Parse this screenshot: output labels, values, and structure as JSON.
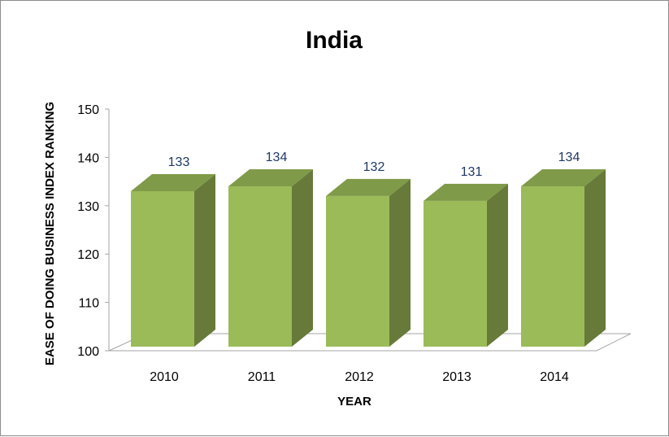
{
  "chart_data": {
    "type": "bar",
    "title": "India",
    "xlabel": "YEAR",
    "ylabel": "EASE OF DOING BUSINESS INDEX RANKING",
    "categories": [
      "2010",
      "2011",
      "2012",
      "2013",
      "2014"
    ],
    "values": [
      133,
      134,
      132,
      131,
      134
    ],
    "data_labels": [
      "133",
      "134",
      "132",
      "131",
      "134"
    ],
    "ylim": [
      100,
      150
    ],
    "yticks": [
      "100",
      "110",
      "120",
      "130",
      "140",
      "150"
    ],
    "style": "3d-column",
    "grid": false,
    "legend": "none",
    "colors": {
      "bar_front": "#9bbb59",
      "bar_side": "#677a39",
      "bar_top": "#7f9a48",
      "data_label": "#1f3864",
      "frame": "#8c8c8c"
    }
  }
}
